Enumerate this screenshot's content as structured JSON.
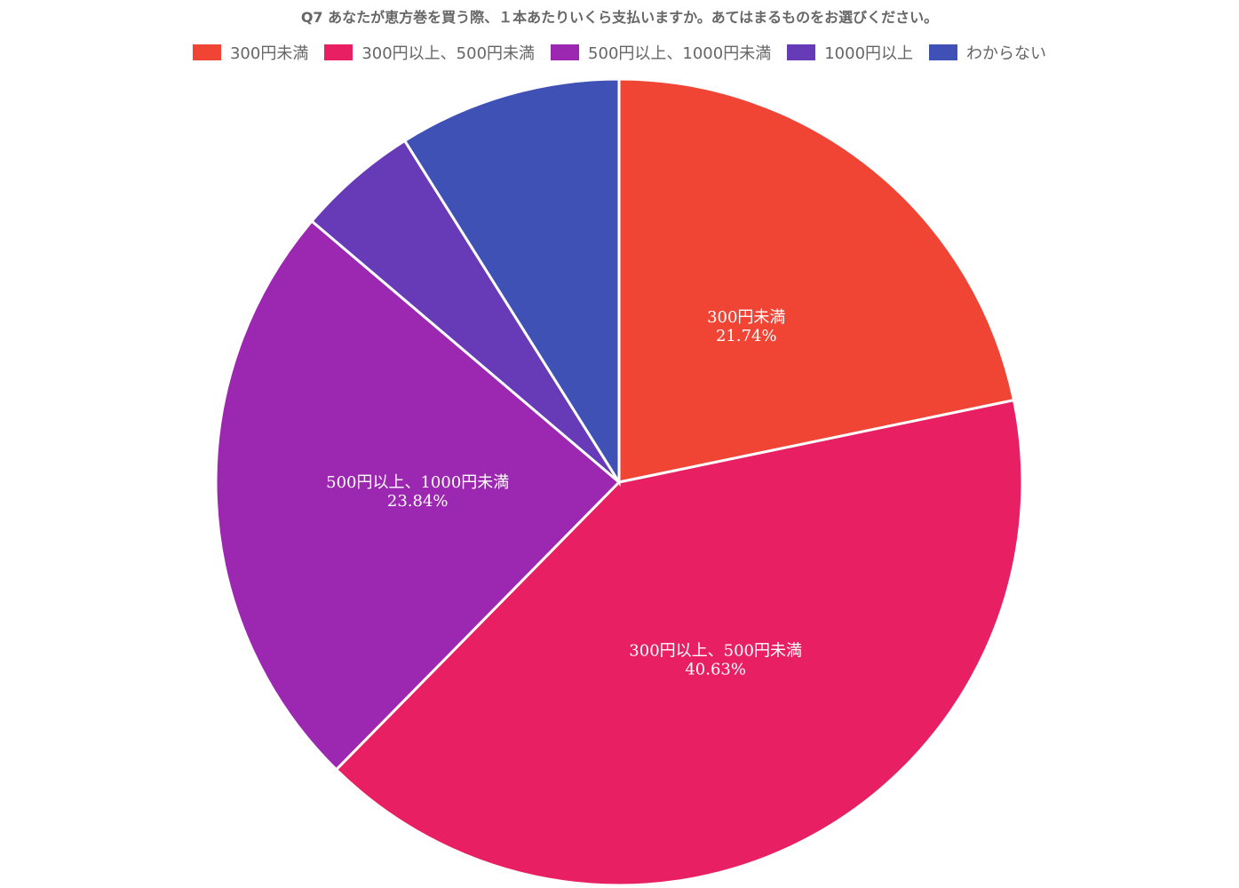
{
  "title": "Q7 あなたが恵方巻を買う際、１本あたりいくら支払いますか。あてはまるものをお選びください。",
  "chart_data": {
    "type": "pie",
    "title": "Q7 あなたが恵方巻を買う際、１本あたりいくら支払いますか。あてはまるものをお選びください。",
    "legend_position": "top",
    "start_angle": "12 o'clock",
    "direction": "clockwise",
    "slices": [
      {
        "label": "300円未満",
        "value": 21.74,
        "value_label": "21.74%",
        "color": "#f04435",
        "show_label": true
      },
      {
        "label": "300円以上、500円未満",
        "value": 40.63,
        "value_label": "40.63%",
        "color": "#e91f63",
        "show_label": true
      },
      {
        "label": "500円以上、1000円未満",
        "value": 23.84,
        "value_label": "23.84%",
        "color": "#9c27b0",
        "show_label": true
      },
      {
        "label": "1000円以上",
        "value": 4.87,
        "color": "#673ab7",
        "show_label": false
      },
      {
        "label": "わからない",
        "value": 8.92,
        "color": "#3f51b5",
        "show_label": false
      }
    ]
  }
}
